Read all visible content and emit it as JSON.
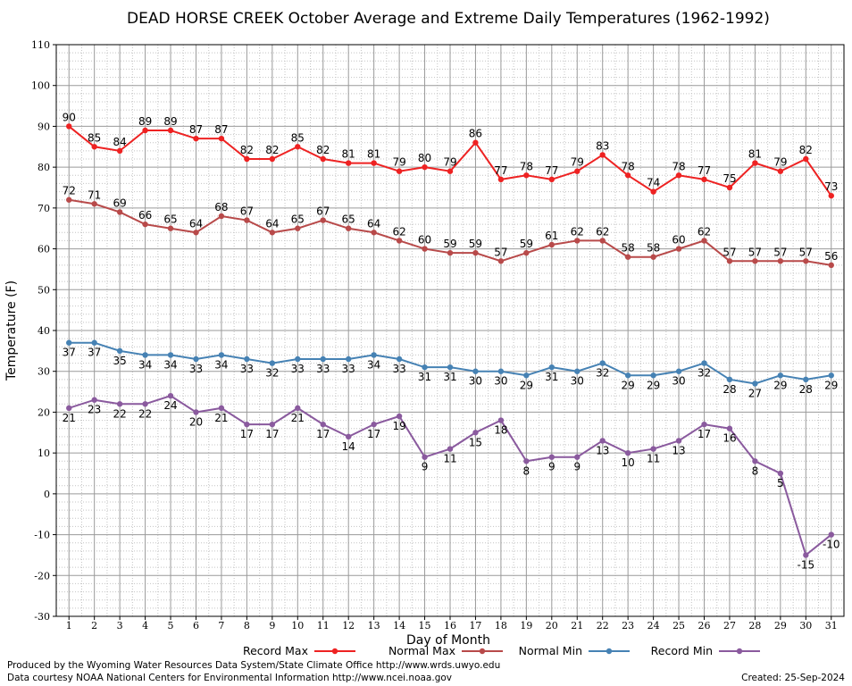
{
  "chart_data": {
    "type": "line",
    "title": "DEAD HORSE CREEK October Average and Extreme Daily Temperatures (1962-1992)",
    "xlabel": "Day of Month",
    "ylabel": "Temperature (F)",
    "ylim": [
      -30,
      110
    ],
    "yticks": [
      -30,
      -20,
      -10,
      0,
      10,
      20,
      30,
      40,
      50,
      60,
      70,
      80,
      90,
      100,
      110
    ],
    "x": [
      1,
      2,
      3,
      4,
      5,
      6,
      7,
      8,
      9,
      10,
      11,
      12,
      13,
      14,
      15,
      16,
      17,
      18,
      19,
      20,
      21,
      22,
      23,
      24,
      25,
      26,
      27,
      28,
      29,
      30,
      31
    ],
    "grid": true,
    "legend_position": "bottom",
    "series": [
      {
        "name": "Record Max",
        "color": "#ee2222",
        "values": [
          90,
          85,
          84,
          89,
          89,
          87,
          87,
          82,
          82,
          85,
          82,
          81,
          81,
          79,
          80,
          79,
          86,
          77,
          78,
          77,
          79,
          83,
          78,
          74,
          78,
          77,
          75,
          81,
          79,
          82,
          73
        ]
      },
      {
        "name": "Normal Max",
        "color": "#b84a4a",
        "values": [
          72,
          71,
          69,
          66,
          65,
          64,
          68,
          67,
          64,
          65,
          67,
          65,
          64,
          62,
          60,
          59,
          59,
          57,
          59,
          61,
          62,
          62,
          58,
          58,
          60,
          62,
          57,
          57,
          57,
          57,
          56
        ]
      },
      {
        "name": "Normal Min",
        "color": "#4682b4",
        "values": [
          37,
          37,
          35,
          34,
          34,
          33,
          34,
          33,
          32,
          33,
          33,
          33,
          34,
          33,
          31,
          31,
          30,
          30,
          29,
          31,
          30,
          32,
          29,
          29,
          30,
          32,
          28,
          27,
          29,
          28,
          29
        ]
      },
      {
        "name": "Record Min",
        "color": "#8a5a9e",
        "values": [
          21,
          23,
          22,
          22,
          24,
          20,
          21,
          17,
          17,
          21,
          17,
          14,
          17,
          19,
          9,
          11,
          15,
          18,
          8,
          9,
          9,
          13,
          10,
          11,
          13,
          17,
          16,
          8,
          5,
          -15,
          -10
        ]
      }
    ]
  },
  "footer": {
    "produced_by": "Produced by the Wyoming Water Resources Data System/State Climate Office http://www.wrds.uwyo.edu",
    "data_courtesy": "Data courtesy NOAA National Centers for Environmental Information http://www.ncei.noaa.gov",
    "created": "Created:  25-Sep-2024"
  }
}
